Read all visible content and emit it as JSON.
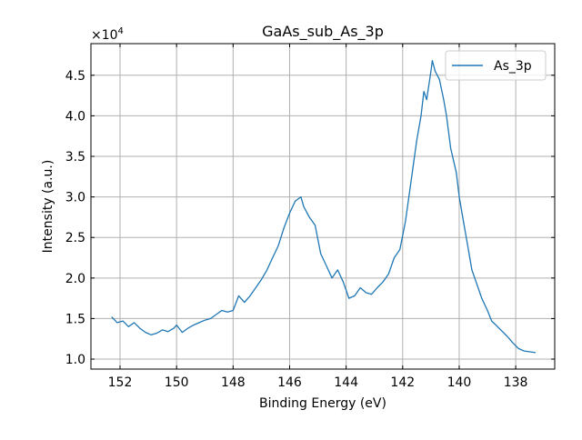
{
  "chart_data": {
    "type": "line",
    "title": "GaAs_sub_As_3p",
    "xlabel": "Binding Energy (eV)",
    "ylabel": "Intensity (a.u.)",
    "y_multiplier_label": "×10^4",
    "y_multiplier_base": "×10",
    "y_multiplier_exp": "4",
    "xlim": [
      153.03,
      136.62
    ],
    "ylim": [
      0.877,
      4.89
    ],
    "x_reversed": true,
    "grid": true,
    "legend_position": "top-right",
    "xticks": [
      152,
      150,
      148,
      146,
      144,
      142,
      140,
      138
    ],
    "yticks": [
      1.0,
      1.5,
      2.0,
      2.5,
      3.0,
      3.5,
      4.0,
      4.5
    ],
    "series": [
      {
        "name": "As_3p",
        "color": "#1f77b4",
        "x": [
          152.3,
          152.1,
          151.9,
          151.7,
          151.5,
          151.3,
          151.1,
          150.9,
          150.7,
          150.5,
          150.3,
          150.1,
          150.0,
          149.8,
          149.6,
          149.4,
          149.2,
          149.0,
          148.8,
          148.6,
          148.4,
          148.2,
          148.0,
          147.8,
          147.6,
          147.4,
          147.2,
          147.0,
          146.8,
          146.6,
          146.4,
          146.2,
          146.0,
          145.8,
          145.6,
          145.5,
          145.3,
          145.1,
          144.9,
          144.7,
          144.5,
          144.3,
          144.1,
          143.9,
          143.7,
          143.5,
          143.3,
          143.1,
          142.9,
          142.7,
          142.5,
          142.3,
          142.1,
          141.9,
          141.7,
          141.6,
          141.5,
          141.35,
          141.25,
          141.15,
          141.0,
          140.95,
          140.85,
          140.7,
          140.55,
          140.45,
          140.3,
          140.1,
          140.0,
          139.85,
          139.7,
          139.55,
          139.4,
          139.2,
          139.0,
          138.85,
          138.7,
          138.5,
          138.3,
          138.1,
          137.9,
          137.7,
          137.5,
          137.3
        ],
        "y": [
          1.52,
          1.45,
          1.47,
          1.4,
          1.45,
          1.38,
          1.33,
          1.3,
          1.32,
          1.36,
          1.34,
          1.38,
          1.42,
          1.33,
          1.38,
          1.42,
          1.45,
          1.48,
          1.5,
          1.55,
          1.6,
          1.58,
          1.6,
          1.78,
          1.7,
          1.78,
          1.88,
          1.98,
          2.1,
          2.25,
          2.4,
          2.62,
          2.8,
          2.95,
          3.0,
          2.88,
          2.75,
          2.65,
          2.3,
          2.15,
          2.0,
          2.1,
          1.95,
          1.75,
          1.78,
          1.88,
          1.82,
          1.8,
          1.88,
          1.95,
          2.05,
          2.25,
          2.35,
          2.7,
          3.2,
          3.45,
          3.7,
          4.0,
          4.3,
          4.2,
          4.55,
          4.68,
          4.55,
          4.45,
          4.2,
          4.0,
          3.6,
          3.3,
          3.0,
          2.7,
          2.4,
          2.1,
          1.95,
          1.75,
          1.6,
          1.47,
          1.42,
          1.35,
          1.28,
          1.2,
          1.13,
          1.1,
          1.09,
          1.08
        ]
      }
    ]
  }
}
